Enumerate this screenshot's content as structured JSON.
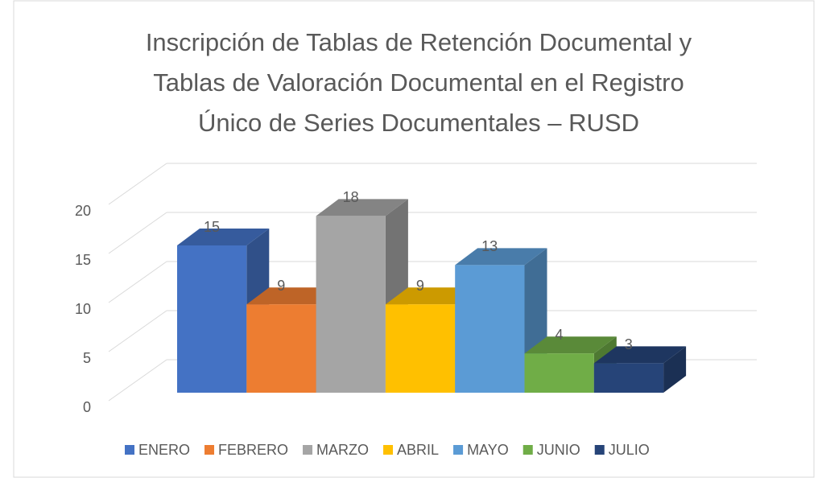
{
  "chart_data": {
    "type": "bar",
    "title": "Inscripción de Tablas de Retención Documental y Tablas de Valoración Documental en el Registro Único de Series Documentales – RUSD",
    "categories": [
      null
    ],
    "series": [
      {
        "name": "ENERO",
        "color": "#4472c4",
        "values": [
          15
        ]
      },
      {
        "name": "FEBRERO",
        "color": "#ed7d31",
        "values": [
          9
        ]
      },
      {
        "name": "MARZO",
        "color": "#a5a5a5",
        "values": [
          18
        ]
      },
      {
        "name": "ABRIL",
        "color": "#ffc000",
        "values": [
          9
        ]
      },
      {
        "name": "MAYO",
        "color": "#5b9bd5",
        "values": [
          13
        ]
      },
      {
        "name": "JUNIO",
        "color": "#70ad47",
        "values": [
          4
        ]
      },
      {
        "name": "JULIO",
        "color": "#264478",
        "values": [
          3
        ]
      }
    ],
    "ylim": [
      0,
      20
    ],
    "yticks": [
      0,
      5,
      10,
      15,
      20
    ],
    "grid": true,
    "legend": "bottom"
  }
}
